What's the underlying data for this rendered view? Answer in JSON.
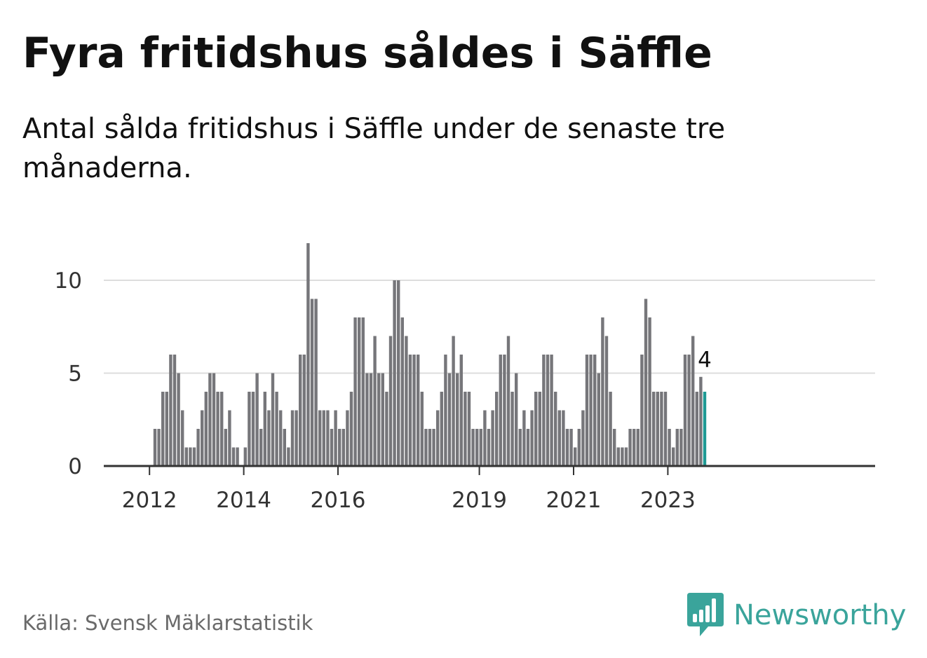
{
  "header": {
    "title": "Fyra fritidshus såldes i Säffle",
    "subtitle": "Antal sålda fritidshus i Säffle under de senaste tre månaderna."
  },
  "footer": {
    "source": "Källa: Svensk Mäklarstatistik",
    "brand": "Newsworthy"
  },
  "colors": {
    "bar": "#76767a",
    "highlight": "#1f9a94",
    "grid": "#dddddd",
    "baseline": "#333333",
    "brand": "#3aa49b"
  },
  "icons": {
    "brand_logo": "bar-chart-speech-bubble-icon"
  },
  "chart_data": {
    "type": "bar",
    "title": "",
    "xlabel": "",
    "ylabel": "",
    "ylim": [
      0,
      12
    ],
    "yticks": [
      "0",
      "5",
      "10"
    ],
    "xtick_labels": [
      "2012",
      "2014",
      "2016",
      "2019",
      "2021",
      "2023"
    ],
    "first_period": "2011-01",
    "period": "month",
    "highlight_last": true,
    "last_value_label": "4",
    "grid": true,
    "values": [
      0,
      0,
      0,
      0,
      0,
      0,
      0,
      0,
      0,
      0,
      0,
      0,
      0,
      2,
      2,
      4,
      4,
      6,
      6,
      5,
      3,
      1,
      1,
      1,
      2,
      3,
      4,
      5,
      5,
      4,
      4,
      2,
      3,
      1,
      1,
      0,
      1,
      4,
      4,
      5,
      2,
      4,
      3,
      5,
      4,
      3,
      2,
      1,
      3,
      3,
      6,
      6,
      12,
      9,
      9,
      3,
      3,
      3,
      2,
      3,
      2,
      2,
      3,
      4,
      8,
      8,
      8,
      5,
      5,
      7,
      5,
      5,
      4,
      7,
      10,
      10,
      8,
      7,
      6,
      6,
      6,
      4,
      2,
      2,
      2,
      3,
      4,
      6,
      5,
      7,
      5,
      6,
      4,
      4,
      2,
      2,
      2,
      3,
      2,
      3,
      4,
      6,
      6,
      7,
      4,
      5,
      2,
      3,
      2,
      3,
      4,
      4,
      6,
      6,
      6,
      4,
      3,
      3,
      2,
      2,
      1,
      2,
      3,
      6,
      6,
      6,
      5,
      8,
      7,
      4,
      2,
      1,
      1,
      1,
      2,
      2,
      2,
      6,
      9,
      8,
      4,
      4,
      4,
      4,
      2,
      1,
      2,
      2,
      6,
      6,
      7,
      4,
      4.8,
      4
    ]
  }
}
